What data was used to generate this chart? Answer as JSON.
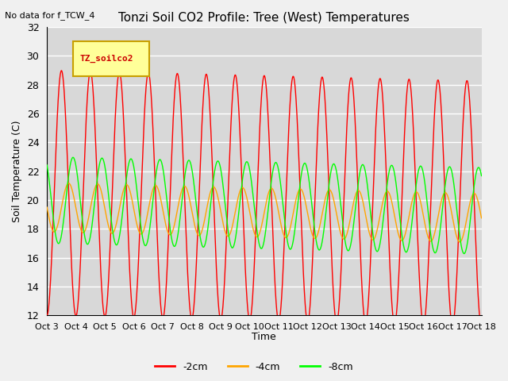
{
  "title": "Tonzi Soil CO2 Profile: Tree (West) Temperatures",
  "subtitle": "No data for f_TCW_4",
  "ylabel": "Soil Temperature (C)",
  "xlabel": "Time",
  "ylim": [
    12,
    32
  ],
  "series": [
    {
      "label": "-2cm",
      "color": "#ff0000"
    },
    {
      "label": "-4cm",
      "color": "#ffa500"
    },
    {
      "label": "-8cm",
      "color": "#00ff00"
    }
  ],
  "x_tick_labels": [
    "Oct 3",
    "Oct 4",
    "Oct 5",
    "Oct 6",
    "Oct 7",
    "Oct 8",
    "Oct 9",
    "Oct 10",
    "Oct 11",
    "Oct 12",
    "Oct 13",
    "Oct 14",
    "Oct 15",
    "Oct 16",
    "Oct 17",
    "Oct 18"
  ],
  "legend_label": "TZ_soilco2",
  "legend_color": "#ffff99",
  "legend_border": "#c8a000",
  "fig_bg": "#f0f0f0",
  "plot_bg": "#d8d8d8"
}
